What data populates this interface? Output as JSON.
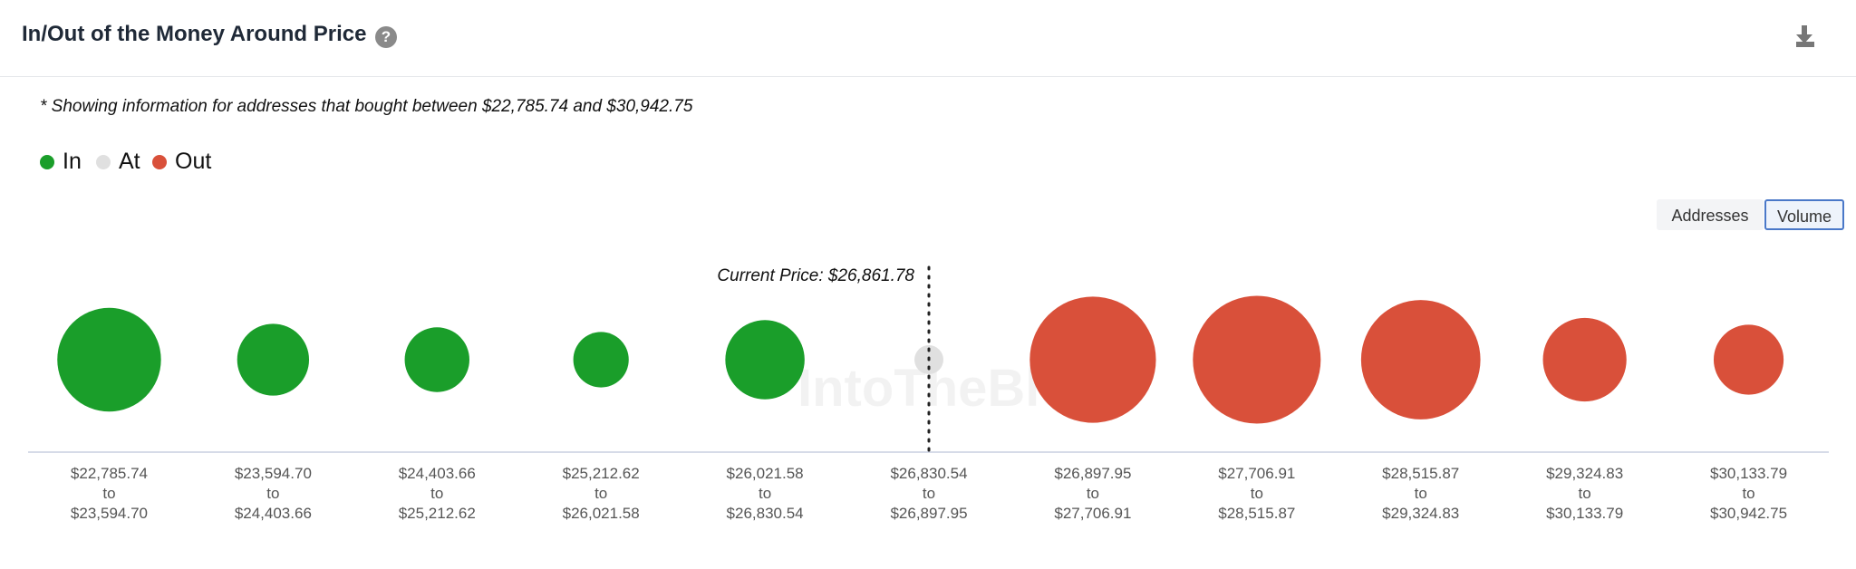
{
  "header": {
    "title": "In/Out of the Money Around Price"
  },
  "note": "* Showing information for addresses that bought between $22,785.74 and $30,942.75",
  "toggle": {
    "options": [
      "Addresses",
      "Volume"
    ],
    "active": "Volume"
  },
  "chart_data": {
    "type": "bubble",
    "legend": [
      {
        "name": "In",
        "color": "#1a9e2a"
      },
      {
        "name": "At",
        "color": "#e0e0e0"
      },
      {
        "name": "Out",
        "color": "#d9503a"
      }
    ],
    "categories": [
      "$22,785.74\nto\n$23,594.70",
      "$23,594.70\nto\n$24,403.66",
      "$24,403.66\nto\n$25,212.62",
      "$25,212.62\nto\n$26,021.58",
      "$26,021.58\nto\n$26,830.54",
      "$26,830.54\nto\n$26,897.95",
      "$26,897.95\nto\n$27,706.91",
      "$27,706.91\nto\n$28,515.87",
      "$28,515.87\nto\n$29,324.83",
      "$29,324.83\nto\n$30,133.79",
      "$30,133.79\nto\n$30,942.75"
    ],
    "status": [
      "In",
      "In",
      "In",
      "In",
      "In",
      "At",
      "Out",
      "Out",
      "Out",
      "Out",
      "Out"
    ],
    "values": [
      77,
      37,
      30,
      22,
      45,
      6,
      114,
      117,
      102,
      50,
      35
    ],
    "annotation": "Current Price: $26,861.78",
    "watermark": "IntoTheBlock"
  }
}
